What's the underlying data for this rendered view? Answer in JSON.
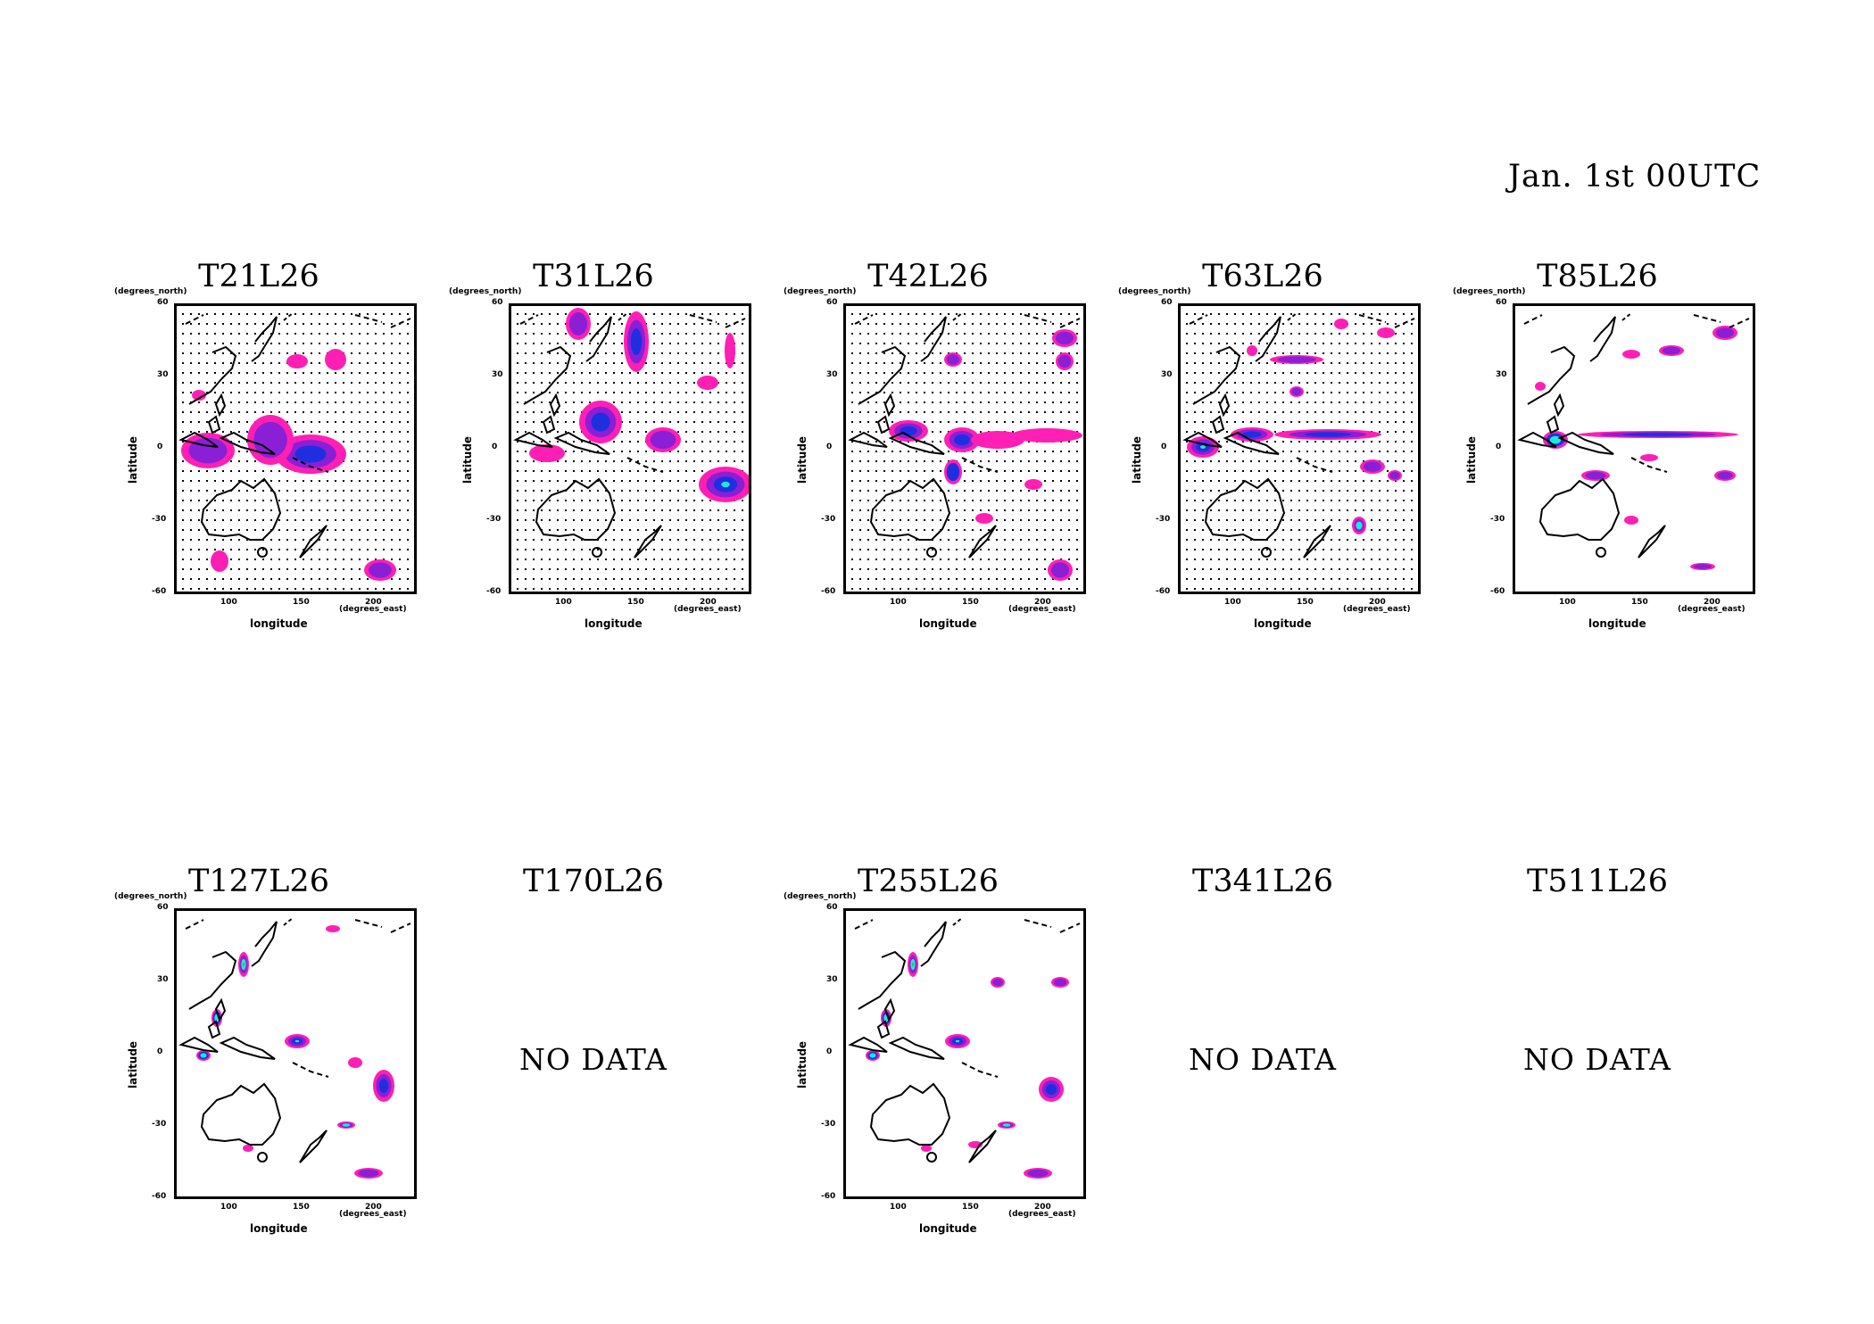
{
  "header": {
    "date": "Jan. 1st 00UTC"
  },
  "axes": {
    "y_unit": "(degrees_north)",
    "x_unit": "(degrees_east)",
    "y_label": "latitude",
    "x_label": "longitude",
    "y_ticks": [
      "60",
      "30",
      "0",
      "-30",
      "-60"
    ],
    "x_ticks": [
      "100",
      "150",
      "200"
    ]
  },
  "no_data_text": "NO DATA",
  "panels": [
    {
      "title": "T21L26",
      "has_data": true,
      "dotted": true
    },
    {
      "title": "T31L26",
      "has_data": true,
      "dotted": true
    },
    {
      "title": "T42L26",
      "has_data": true,
      "dotted": true
    },
    {
      "title": "T63L26",
      "has_data": true,
      "dotted": true
    },
    {
      "title": "T85L26",
      "has_data": true,
      "dotted": false
    },
    {
      "title": "T127L26",
      "has_data": true,
      "dotted": false
    },
    {
      "title": "T170L26",
      "has_data": false,
      "dotted": false
    },
    {
      "title": "T255L26",
      "has_data": true,
      "dotted": false
    },
    {
      "title": "T341L26",
      "has_data": false,
      "dotted": false
    },
    {
      "title": "T511L26",
      "has_data": false,
      "dotted": false
    }
  ],
  "colors": {
    "magenta": "#ff1fb4",
    "purple": "#8a1fd6",
    "blue": "#1f2fe0",
    "cyan": "#20e8d8",
    "green": "#38c838"
  }
}
